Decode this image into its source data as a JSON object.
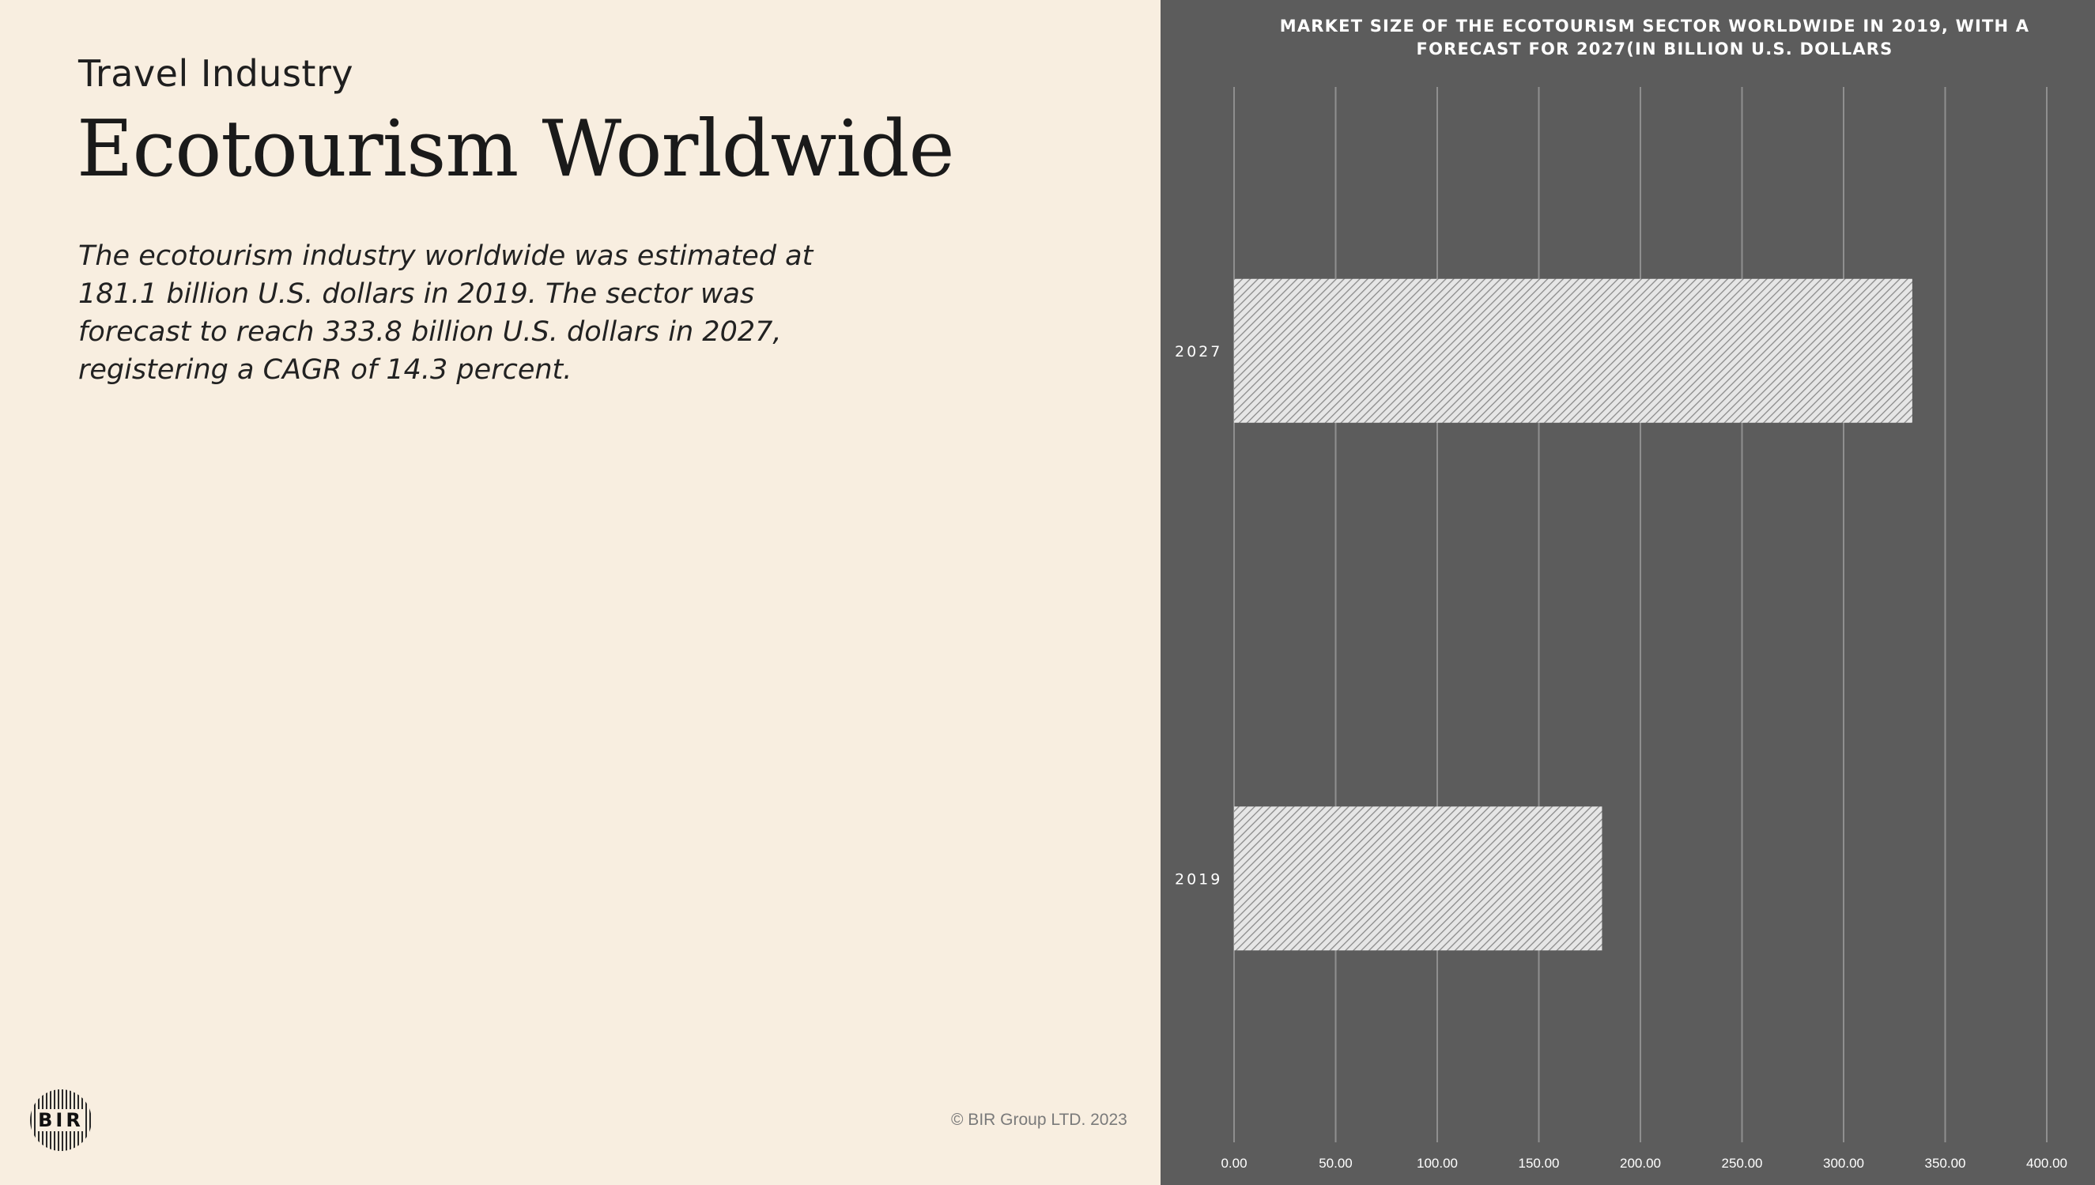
{
  "header": {
    "kicker": "Travel Industry",
    "title": "Ecotourism Worldwide"
  },
  "description": [
    "The ecotourism industry worldwide was estimated at",
    "181.1 billion U.S. dollars in 2019. The sector was",
    "forecast to reach 333.8 billion U.S.  dollars in 2027,",
    "registering a CAGR of 14.3 percent."
  ],
  "footer": {
    "logo_text": "BIR",
    "copyright": "© BIR Group LTD. 2023"
  },
  "colors": {
    "page_background": "#f8eee0",
    "chart_background": "#5c5c5c",
    "bar_fill": "#e6e6e6",
    "bar_hatch": "#8a8a8a",
    "gridline": "#8f8f8f",
    "chart_text": "#ffffff"
  },
  "chart_data": {
    "type": "bar",
    "orientation": "horizontal",
    "title_lines": [
      "MARKET SIZE OF THE ECOTOURISM SECTOR WORLDWIDE IN 2019, WITH A",
      "FORECAST FOR 2027(IN BILLION U.S. DOLLARS"
    ],
    "categories": [
      "2027",
      "2019"
    ],
    "values": [
      333.8,
      181.1
    ],
    "xlim": [
      0,
      400
    ],
    "x_ticks": [
      "0.00",
      "50.00",
      "100.00",
      "150.00",
      "200.00",
      "250.00",
      "300.00",
      "350.00",
      "400.00"
    ],
    "grid": true,
    "legend": false
  }
}
